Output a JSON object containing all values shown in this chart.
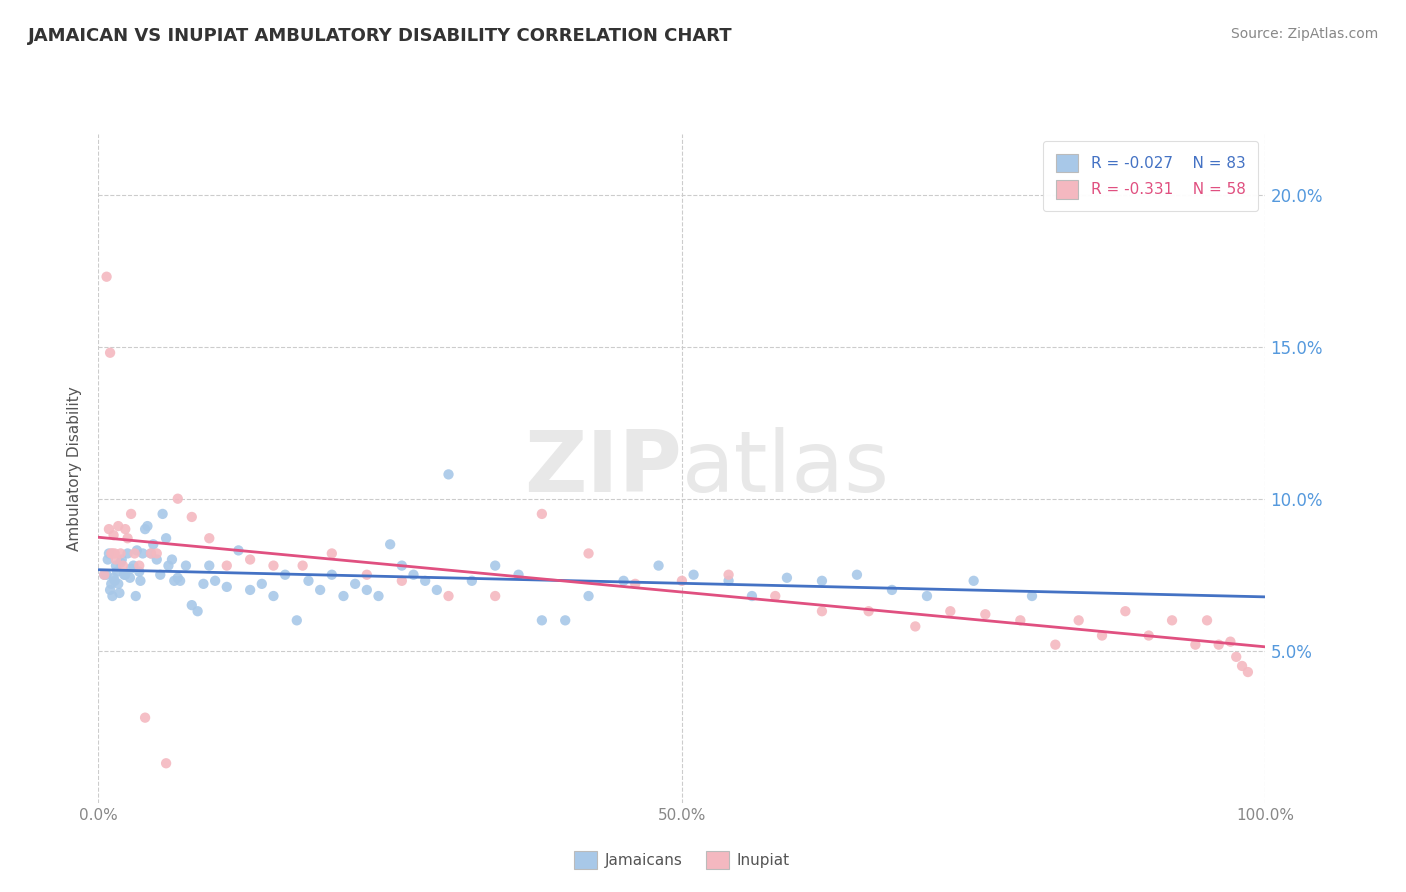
{
  "title": "JAMAICAN VS INUPIAT AMBULATORY DISABILITY CORRELATION CHART",
  "source_text": "Source: ZipAtlas.com",
  "ylabel": "Ambulatory Disability",
  "x_min": 0.0,
  "x_max": 1.0,
  "y_min": 0.0,
  "y_max": 0.22,
  "x_ticks": [
    0.0,
    0.5,
    1.0
  ],
  "x_tick_labels": [
    "0.0%",
    "50.0%",
    "100.0%"
  ],
  "y_ticks": [
    0.05,
    0.1,
    0.15,
    0.2
  ],
  "y_tick_labels": [
    "5.0%",
    "10.0%",
    "15.0%",
    "20.0%"
  ],
  "jamaican_color": "#a8c8e8",
  "inupiat_color": "#f4b8c0",
  "jamaican_line_color": "#4472c4",
  "inupiat_line_color": "#e05080",
  "grid_color": "#cccccc",
  "watermark_color": "#e8e8e8",
  "ytick_color": "#5599dd",
  "xtick_color": "#888888",
  "legend_R_jamaican": "R = -0.027",
  "legend_N_jamaican": "N = 83",
  "legend_R_inupiat": "R = -0.331",
  "legend_N_inupiat": "N = 58",
  "jamaican_x": [
    0.005,
    0.007,
    0.008,
    0.009,
    0.01,
    0.011,
    0.012,
    0.013,
    0.014,
    0.015,
    0.016,
    0.017,
    0.018,
    0.019,
    0.02,
    0.022,
    0.023,
    0.025,
    0.027,
    0.028,
    0.03,
    0.032,
    0.033,
    0.035,
    0.036,
    0.038,
    0.04,
    0.042,
    0.045,
    0.047,
    0.05,
    0.053,
    0.055,
    0.058,
    0.06,
    0.063,
    0.065,
    0.068,
    0.07,
    0.075,
    0.08,
    0.085,
    0.09,
    0.095,
    0.1,
    0.11,
    0.12,
    0.13,
    0.14,
    0.15,
    0.16,
    0.17,
    0.18,
    0.19,
    0.2,
    0.21,
    0.22,
    0.23,
    0.24,
    0.25,
    0.26,
    0.27,
    0.28,
    0.29,
    0.3,
    0.32,
    0.34,
    0.36,
    0.38,
    0.4,
    0.42,
    0.45,
    0.48,
    0.51,
    0.54,
    0.56,
    0.59,
    0.62,
    0.65,
    0.68,
    0.71,
    0.75,
    0.8
  ],
  "jamaican_y": [
    0.075,
    0.075,
    0.08,
    0.082,
    0.07,
    0.072,
    0.068,
    0.074,
    0.073,
    0.078,
    0.076,
    0.072,
    0.069,
    0.079,
    0.08,
    0.075,
    0.075,
    0.082,
    0.074,
    0.077,
    0.078,
    0.068,
    0.083,
    0.076,
    0.073,
    0.082,
    0.09,
    0.091,
    0.082,
    0.085,
    0.08,
    0.075,
    0.095,
    0.087,
    0.078,
    0.08,
    0.073,
    0.074,
    0.073,
    0.078,
    0.065,
    0.063,
    0.072,
    0.078,
    0.073,
    0.071,
    0.083,
    0.07,
    0.072,
    0.068,
    0.075,
    0.06,
    0.073,
    0.07,
    0.075,
    0.068,
    0.072,
    0.07,
    0.068,
    0.085,
    0.078,
    0.075,
    0.073,
    0.07,
    0.108,
    0.073,
    0.078,
    0.075,
    0.06,
    0.06,
    0.068,
    0.073,
    0.078,
    0.075,
    0.073,
    0.068,
    0.074,
    0.073,
    0.075,
    0.07,
    0.068,
    0.073,
    0.068
  ],
  "inupiat_x": [
    0.005,
    0.007,
    0.009,
    0.01,
    0.011,
    0.012,
    0.013,
    0.014,
    0.015,
    0.017,
    0.019,
    0.021,
    0.023,
    0.025,
    0.028,
    0.031,
    0.035,
    0.04,
    0.045,
    0.05,
    0.058,
    0.068,
    0.08,
    0.095,
    0.11,
    0.13,
    0.15,
    0.175,
    0.2,
    0.23,
    0.26,
    0.3,
    0.34,
    0.38,
    0.42,
    0.46,
    0.5,
    0.54,
    0.58,
    0.62,
    0.66,
    0.7,
    0.73,
    0.76,
    0.79,
    0.82,
    0.84,
    0.86,
    0.88,
    0.9,
    0.92,
    0.94,
    0.95,
    0.96,
    0.97,
    0.975,
    0.98,
    0.985
  ],
  "inupiat_y": [
    0.075,
    0.173,
    0.09,
    0.148,
    0.082,
    0.082,
    0.088,
    0.082,
    0.08,
    0.091,
    0.082,
    0.078,
    0.09,
    0.087,
    0.095,
    0.082,
    0.078,
    0.028,
    0.082,
    0.082,
    0.013,
    0.1,
    0.094,
    0.087,
    0.078,
    0.08,
    0.078,
    0.078,
    0.082,
    0.075,
    0.073,
    0.068,
    0.068,
    0.095,
    0.082,
    0.072,
    0.073,
    0.075,
    0.068,
    0.063,
    0.063,
    0.058,
    0.063,
    0.062,
    0.06,
    0.052,
    0.06,
    0.055,
    0.063,
    0.055,
    0.06,
    0.052,
    0.06,
    0.052,
    0.053,
    0.048,
    0.045,
    0.043
  ]
}
